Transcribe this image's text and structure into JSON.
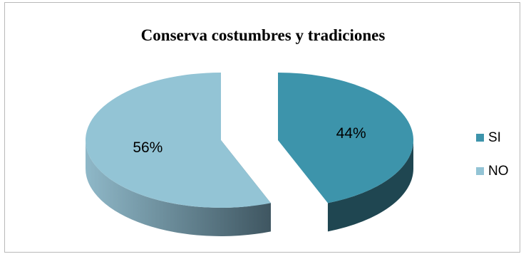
{
  "chart_data": {
    "type": "pie",
    "title": "Conserva  costumbres y tradiciones",
    "categories": [
      "SI",
      "NO"
    ],
    "values": [
      44,
      56
    ],
    "labels": [
      "44%",
      "56%"
    ],
    "colors": {
      "SI": {
        "top": "#3d94ab",
        "side": "#1f4651"
      },
      "NO": {
        "top": "#93c4d5",
        "side": "#5d7c8a"
      }
    },
    "legend_position": "right",
    "exploded": true,
    "three_d": true
  }
}
